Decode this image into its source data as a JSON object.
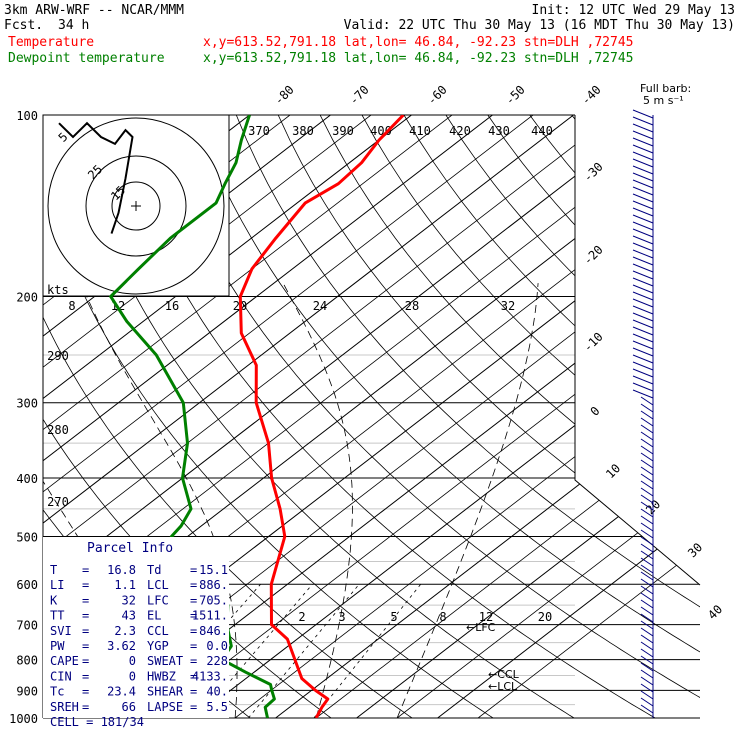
{
  "header": {
    "model": "3km ARW-WRF -- NCAR/MMM",
    "init": "Init: 12 UTC Wed 29 May 13",
    "fcst_label": "Fcst.",
    "fcst_value": "34 h",
    "valid": "Valid: 22 UTC Thu 30 May 13 (16 MDT Thu 30 May 13)",
    "series": [
      {
        "label": "Temperature",
        "info": "x,y=613.52,791.18   lat,lon= 46.84, -92.23  stn=DLH ,72745",
        "color": "#ff0000"
      },
      {
        "label": "Dewpoint temperature",
        "info": "x,y=613.52,791.18   lat,lon= 46.84, -92.23  stn=DLH ,72745",
        "color": "#008000"
      }
    ]
  },
  "wind_legend": {
    "line1": "Full barb:",
    "line2": "5 m s⁻¹"
  },
  "chart_data": {
    "type": "line",
    "pressure_levels": [
      "100",
      "200",
      "300",
      "400",
      "500",
      "600",
      "700",
      "800",
      "900",
      "1000"
    ],
    "isotherm_labels": [
      "-80",
      "-70",
      "-60",
      "-50",
      "-40",
      "-30",
      "-20",
      "-10",
      "0",
      "10",
      "20",
      "30",
      "40"
    ],
    "theta_labels": [
      "370",
      "380",
      "390",
      "400",
      "410",
      "420",
      "430",
      "440"
    ],
    "theta_left_labels": [
      "290",
      "280",
      "270"
    ],
    "mixing_ratio_labels": [
      "2",
      "3",
      "5",
      "8",
      "12",
      "20"
    ],
    "hodograph": {
      "kts_label": "kts",
      "ring_labels": [
        "5",
        "25",
        "15"
      ],
      "speed_ticks": [
        "8",
        "12",
        "16",
        "20",
        "24",
        "28",
        "32"
      ],
      "trace": [
        [
          -22,
          12
        ],
        [
          -18,
          10
        ],
        [
          -14,
          12
        ],
        [
          -10,
          10
        ],
        [
          -6,
          9
        ],
        [
          -3,
          11
        ],
        [
          -1,
          10
        ],
        [
          -3,
          4
        ],
        [
          -5,
          -1
        ],
        [
          -7,
          -4
        ]
      ]
    },
    "series": [
      {
        "name": "Temperature",
        "color": "#ff0000",
        "points": [
          [
            1000,
            25
          ],
          [
            960,
            24
          ],
          [
            930,
            23.4
          ],
          [
            900,
            20.5
          ],
          [
            860,
            16.9
          ],
          [
            800,
            13
          ],
          [
            740,
            8.8
          ],
          [
            700,
            4.5
          ],
          [
            600,
            -2
          ],
          [
            500,
            -8
          ],
          [
            450,
            -13
          ],
          [
            400,
            -19
          ],
          [
            350,
            -25
          ],
          [
            300,
            -33
          ],
          [
            260,
            -39
          ],
          [
            230,
            -46
          ],
          [
            200,
            -52
          ],
          [
            180,
            -55
          ],
          [
            160,
            -57
          ],
          [
            140,
            -59
          ],
          [
            130,
            -58
          ],
          [
            120,
            -58.5
          ],
          [
            110,
            -60
          ],
          [
            100,
            -61
          ]
        ]
      },
      {
        "name": "Dewpoint temperature",
        "color": "#008000",
        "points": [
          [
            1000,
            19
          ],
          [
            960,
            17
          ],
          [
            930,
            16.8
          ],
          [
            900,
            15.1
          ],
          [
            880,
            14
          ],
          [
            840,
            9
          ],
          [
            800,
            4
          ],
          [
            760,
            3
          ],
          [
            700,
            -1
          ],
          [
            650,
            -4
          ],
          [
            600,
            -9
          ],
          [
            550,
            -14
          ],
          [
            500,
            -22
          ],
          [
            480,
            -22.5
          ],
          [
            450,
            -24
          ],
          [
            400,
            -30
          ],
          [
            350,
            -35
          ],
          [
            300,
            -42
          ],
          [
            250,
            -53
          ],
          [
            220,
            -62
          ],
          [
            200,
            -68
          ],
          [
            180,
            -69
          ],
          [
            160,
            -70
          ],
          [
            140,
            -70
          ],
          [
            130,
            -72
          ],
          [
            120,
            -74
          ],
          [
            110,
            -77
          ],
          [
            100,
            -80
          ]
        ]
      }
    ]
  },
  "parcel_info": {
    "title": "Parcel Info",
    "rows": [
      {
        "k1": "T",
        "v1": "16.8",
        "k2": "Td",
        "v2": "15.1"
      },
      {
        "k1": "LI",
        "v1": "1.1",
        "k2": "LCL",
        "v2": "886."
      },
      {
        "k1": "K",
        "v1": "32",
        "k2": "LFC",
        "v2": "705."
      },
      {
        "k1": "TT",
        "v1": "43",
        "k2": "EL",
        "v2": "1511."
      },
      {
        "k1": "SVI",
        "v1": "2.3",
        "k2": "CCL",
        "v2": "846."
      },
      {
        "k1": "PW",
        "v1": "3.62",
        "k2": "YGP",
        "v2": "0.0"
      },
      {
        "k1": "CAPE",
        "v1": "0",
        "k2": "SWEAT",
        "v2": "228"
      },
      {
        "k1": "CIN",
        "v1": "0",
        "k2": "HWBZ",
        "v2": "4133."
      },
      {
        "k1": "Tc",
        "v1": "23.4",
        "k2": "SHEAR",
        "v2": "40."
      },
      {
        "k1": "SREH",
        "v1": "66",
        "k2": "LAPSE",
        "v2": "5.5"
      }
    ],
    "cell": "CELL = 181/34"
  },
  "level_markers": {
    "lfc": "LFC",
    "ccl": "CCL",
    "lcl": "LCL"
  }
}
